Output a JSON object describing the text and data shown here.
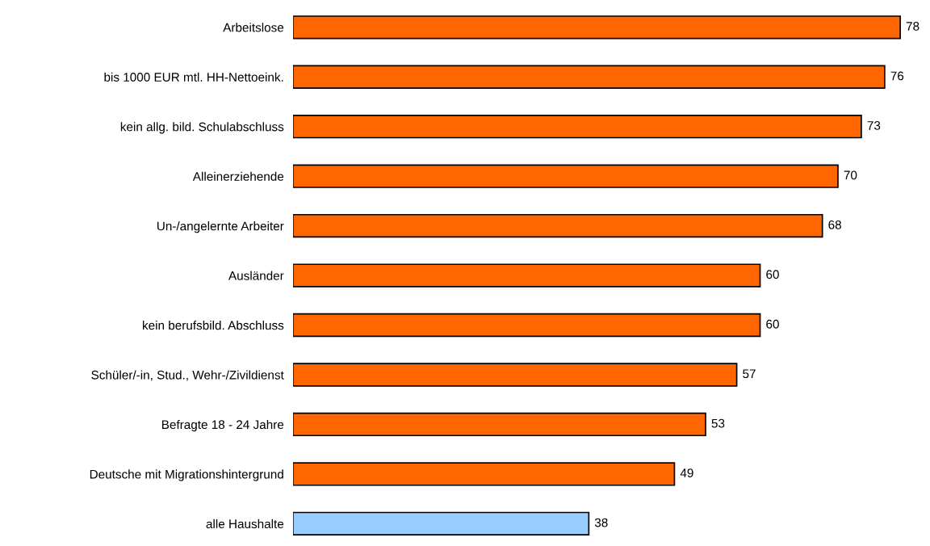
{
  "chart_data": {
    "type": "bar",
    "orientation": "horizontal",
    "data_labels": true,
    "grid": false,
    "legend": false,
    "categories": [
      "Arbeitslose",
      "bis 1000 EUR mtl. HH-Nettoeink.",
      "kein allg. bild. Schulabschluss",
      "Alleinerziehende",
      "Un-/angelernte Arbeiter",
      "Ausländer",
      "kein berufsbild. Abschluss",
      "Schüler/-in, Stud., Wehr-/Zivildienst",
      "Befragte 18 - 24 Jahre",
      "Deutsche mit Migrationshintergrund",
      "alle Haushalte"
    ],
    "values": [
      78,
      76,
      73,
      70,
      68,
      60,
      60,
      57,
      53,
      49,
      38
    ],
    "colors": [
      "#ff6600",
      "#ff6600",
      "#ff6600",
      "#ff6600",
      "#ff6600",
      "#ff6600",
      "#ff6600",
      "#ff6600",
      "#ff6600",
      "#ff6600",
      "#99ccff"
    ]
  }
}
